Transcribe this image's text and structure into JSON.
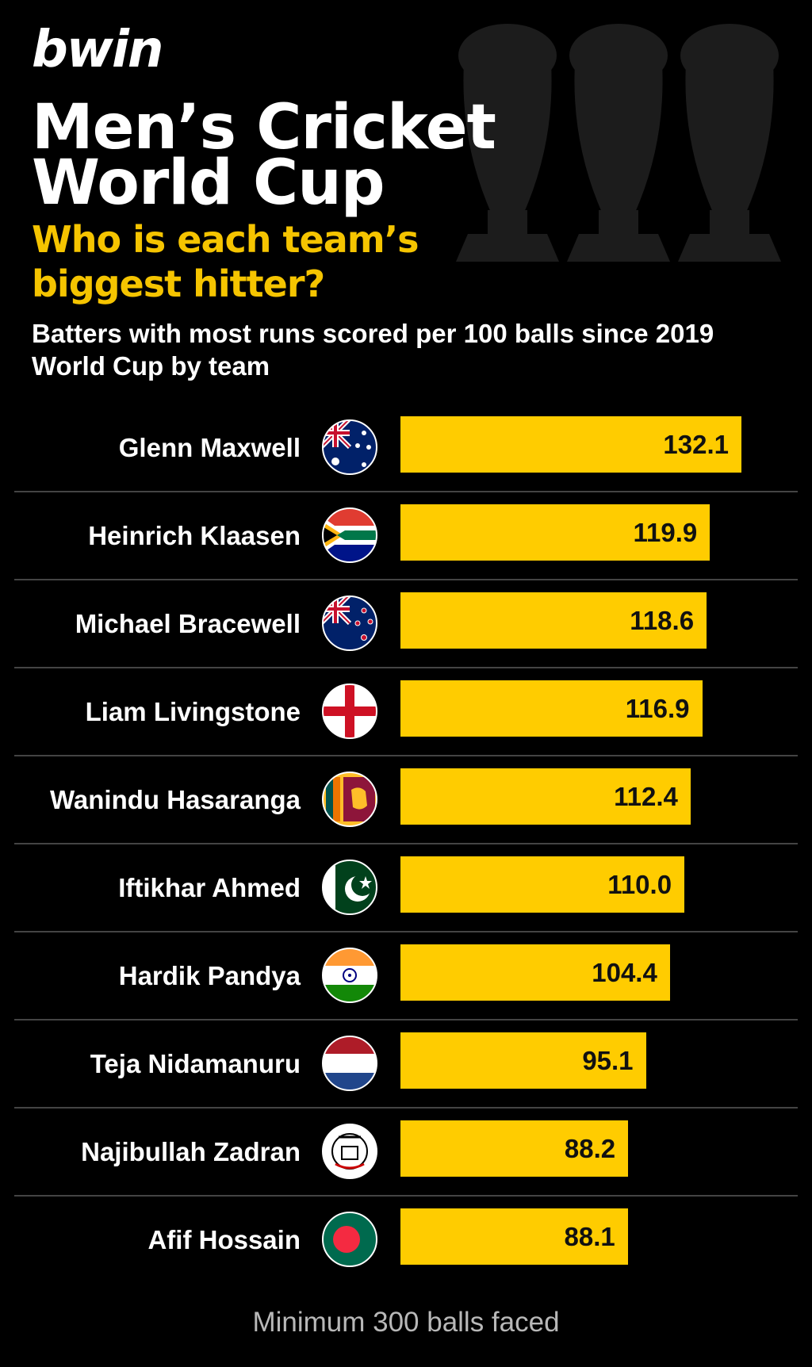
{
  "brand": {
    "logo": "bwin",
    "accent": "#ffcc00",
    "subtitle_color": "#f5c400"
  },
  "header": {
    "title": "Men’s Cricket World Cup",
    "subtitle": "Who is each team’s biggest hitter?",
    "description": "Batters with most runs scored per 100 balls since 2019 World Cup by team"
  },
  "chart_data": {
    "type": "bar",
    "orientation": "horizontal",
    "title": "Batters with most runs scored per 100 balls since 2019 World Cup by team",
    "categories": [
      "Glenn Maxwell",
      "Heinrich Klaasen",
      "Michael Bracewell",
      "Liam Livingstone",
      "Wanindu Hasaranga",
      "Iftikhar Ahmed",
      "Hardik Pandya",
      "Teja Nidamanuru",
      "Najibullah Zadran",
      "Afif Hossain"
    ],
    "values": [
      132.1,
      119.9,
      118.6,
      116.9,
      112.4,
      110.0,
      104.4,
      95.1,
      88.2,
      88.1
    ],
    "value_labels": [
      "132.1",
      "119.9",
      "118.6",
      "116.9",
      "112.4",
      "110.0",
      "104.4",
      "95.1",
      "88.2",
      "88.1"
    ],
    "flags": [
      "australia-flag-icon",
      "south-africa-flag-icon",
      "new-zealand-flag-icon",
      "england-flag-icon",
      "sri-lanka-flag-icon",
      "pakistan-flag-icon",
      "india-flag-icon",
      "netherlands-flag-icon",
      "afghanistan-flag-icon",
      "bangladesh-flag-icon"
    ],
    "xlim": [
      0,
      132.1
    ],
    "grid": false,
    "legend": "none",
    "bar_color": "#ffcc00"
  },
  "footer": {
    "note": "Minimum 300 balls faced"
  }
}
